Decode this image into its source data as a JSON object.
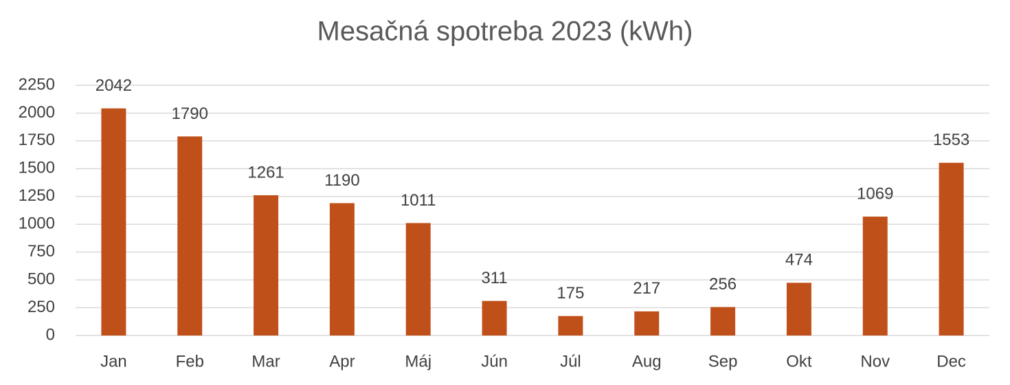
{
  "chart_data": {
    "type": "bar",
    "title": "Mesačná spotreba 2023 (kWh)",
    "categories": [
      "Jan",
      "Feb",
      "Mar",
      "Apr",
      "Máj",
      "Jún",
      "Júl",
      "Aug",
      "Sep",
      "Okt",
      "Nov",
      "Dec"
    ],
    "values": [
      2042,
      1790,
      1261,
      1190,
      1011,
      311,
      175,
      217,
      256,
      474,
      1069,
      1553
    ],
    "color": "#c0501a",
    "ylim": [
      0,
      2250
    ],
    "yticks": [
      0,
      250,
      500,
      750,
      1000,
      1250,
      1500,
      1750,
      2000,
      2250
    ],
    "grid": true
  }
}
